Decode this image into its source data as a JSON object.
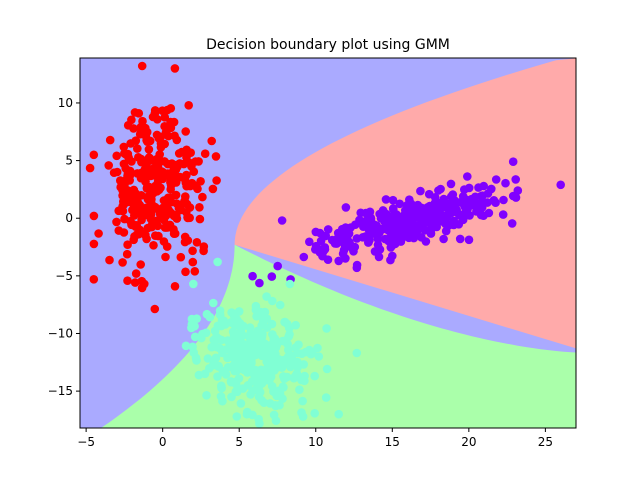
{
  "chart_data": {
    "type": "scatter",
    "title": "Decision boundary plot using GMM",
    "xlabel": "",
    "ylabel": "",
    "xlim": [
      -5.4,
      27.0
    ],
    "ylim": [
      -18.2,
      13.9
    ],
    "xticks": [
      -5,
      0,
      5,
      10,
      15,
      20,
      25
    ],
    "yticks": [
      -15,
      -10,
      -5,
      0,
      5,
      10
    ],
    "grid": false,
    "legend": "none",
    "regions": [
      {
        "color": "#aaaaff",
        "description": "left class region"
      },
      {
        "color": "#ffaaaa",
        "description": "upper right class region"
      },
      {
        "color": "#aaffaa",
        "description": "lower class region"
      }
    ],
    "series": [
      {
        "color": "#ff0000",
        "center": [
          -0.5,
          2.5
        ],
        "spread": [
          1.6,
          3.2
        ],
        "corr": 0.0,
        "count": 320,
        "extremes": [
          [
            0.8,
            13.0
          ],
          [
            -4.5,
            -5.3
          ],
          [
            -4.5,
            5.5
          ],
          [
            3.2,
            6.7
          ],
          [
            1.7,
            9.8
          ],
          [
            -1.2,
            -5.7
          ]
        ]
      },
      {
        "color": "#8000ff",
        "center": [
          16.0,
          -0.3
        ],
        "spread": [
          3.0,
          1.5
        ],
        "corr": 0.7,
        "count": 320,
        "extremes": [
          [
            26.0,
            2.9
          ],
          [
            23.2,
            2.4
          ],
          [
            22.9,
            4.9
          ],
          [
            7.8,
            -0.2
          ],
          [
            10.8,
            -3.6
          ],
          [
            11.5,
            -3.7
          ]
        ]
      },
      {
        "color": "#80ffd4",
        "center": [
          6.0,
          -12.0
        ],
        "spread": [
          1.9,
          2.3
        ],
        "corr": -0.3,
        "count": 320,
        "extremes": [
          [
            2.0,
            -5.7
          ],
          [
            1.9,
            -9.2
          ],
          [
            11.5,
            -17.0
          ],
          [
            5.5,
            -17.0
          ],
          [
            8.0,
            -9.0
          ],
          [
            10.2,
            -12.0
          ]
        ]
      }
    ]
  }
}
